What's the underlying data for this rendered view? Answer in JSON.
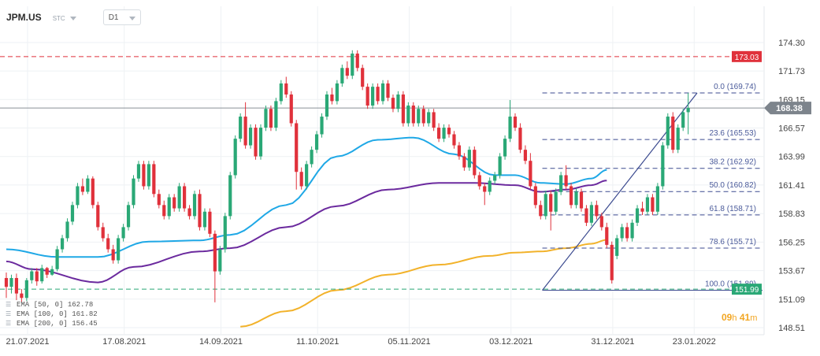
{
  "header": {
    "symbol": "JPM.US",
    "instrument_type": "STC",
    "timeframe": "D1",
    "countdown_hours": "09",
    "countdown_h_unit": "h",
    "countdown_minutes": "41",
    "countdown_m_unit": "m"
  },
  "legend": [
    {
      "label": "EMA",
      "params": "[50, 0]",
      "value": "162.78"
    },
    {
      "label": "EMA",
      "params": "[100, 0]",
      "value": "161.82"
    },
    {
      "label": "EMA",
      "params": "[200, 0]",
      "value": "156.45"
    }
  ],
  "chart_data": {
    "type": "candlestick",
    "symbol": "JPM.US",
    "timeframe": "D1",
    "ylim": [
      148.51,
      174.8
    ],
    "y_ticks": [
      174.3,
      171.73,
      169.15,
      166.57,
      163.99,
      161.41,
      158.83,
      156.25,
      153.67,
      151.09,
      148.51
    ],
    "y_tick_labels": [
      "174.30",
      "171.73",
      "169.15",
      "166.57",
      "163.99",
      "161.41",
      "158.83",
      "156.25",
      "153.67",
      "151.09",
      "148.51"
    ],
    "x_ticks": [
      "21.07.2021",
      "17.08.2021",
      "14.09.2021",
      "11.10.2021",
      "05.11.2021",
      "03.12.2021",
      "31.12.2021",
      "23.01.2022"
    ],
    "x_tick_bar_index": [
      0,
      19,
      38,
      57,
      75,
      95,
      115,
      131
    ],
    "bar_count": 135,
    "current_price": {
      "value": 168.38,
      "label": "168.38"
    },
    "levels": [
      {
        "name": "resistance",
        "value": 173.03,
        "label": "173.03",
        "color": "#e0313b"
      },
      {
        "name": "support",
        "value": 151.99,
        "label": "151.99",
        "color": "#2aa876"
      }
    ],
    "fibonacci": {
      "color": "#3b4a8f",
      "start_bar": 105,
      "end_bar": 125,
      "levels": [
        {
          "ratio": "0.0",
          "value": 169.74,
          "label": "0.0 (169.74)"
        },
        {
          "ratio": "23.6",
          "value": 165.53,
          "label": "23.6 (165.53)"
        },
        {
          "ratio": "38.2",
          "value": 162.92,
          "label": "38.2 (162.92)"
        },
        {
          "ratio": "50.0",
          "value": 160.82,
          "label": "50.0 (160.82)"
        },
        {
          "ratio": "61.8",
          "value": 158.71,
          "label": "61.8 (158.71)"
        },
        {
          "ratio": "78.6",
          "value": 155.71,
          "label": "78.6 (155.71)"
        },
        {
          "ratio": "100.0",
          "value": 151.89,
          "label": "100.0 (151.89)"
        }
      ]
    },
    "colors": {
      "up": "#2aa876",
      "down": "#e0313b",
      "ema50": "#1fa8e6",
      "ema100": "#6b2a9e",
      "ema200": "#f2b22a",
      "fib": "#3b4a8f"
    },
    "ema_series": [
      {
        "name": "EMA [50, 0]",
        "last": 162.78,
        "knots": [
          [
            0,
            155.6
          ],
          [
            10,
            154.9
          ],
          [
            18,
            154.9
          ],
          [
            28,
            156.3
          ],
          [
            38,
            156.4
          ],
          [
            44,
            156.9
          ],
          [
            55,
            159.6
          ],
          [
            65,
            164.0
          ],
          [
            73,
            165.5
          ],
          [
            80,
            165.7
          ],
          [
            88,
            164.2
          ],
          [
            96,
            162.3
          ],
          [
            100,
            162.3
          ],
          [
            105,
            161.6
          ],
          [
            110,
            161.5
          ],
          [
            115,
            162.0
          ],
          [
            118,
            162.78
          ]
        ]
      },
      {
        "name": "EMA [100, 0]",
        "last": 161.82,
        "knots": [
          [
            0,
            154.5
          ],
          [
            5,
            153.8
          ],
          [
            18,
            152.6
          ],
          [
            25,
            154.0
          ],
          [
            38,
            155.4
          ],
          [
            44,
            155.7
          ],
          [
            55,
            157.6
          ],
          [
            65,
            159.5
          ],
          [
            75,
            161.0
          ],
          [
            85,
            161.6
          ],
          [
            92,
            161.6
          ],
          [
            100,
            161.4
          ],
          [
            105,
            160.8
          ],
          [
            110,
            161.0
          ],
          [
            115,
            161.4
          ],
          [
            118,
            161.82
          ]
        ]
      },
      {
        "name": "EMA [200, 0]",
        "last": 156.45,
        "knots": [
          [
            46,
            148.6
          ],
          [
            55,
            150.0
          ],
          [
            65,
            151.9
          ],
          [
            75,
            153.3
          ],
          [
            85,
            154.2
          ],
          [
            95,
            155.0
          ],
          [
            100,
            155.3
          ],
          [
            105,
            155.4
          ],
          [
            110,
            155.7
          ],
          [
            115,
            156.1
          ],
          [
            118,
            156.45
          ]
        ]
      }
    ],
    "candles": [
      [
        153.0,
        152.2,
        153.5,
        151.2
      ],
      [
        152.2,
        153.0,
        153.3,
        151.6
      ],
      [
        153.0,
        151.6,
        153.4,
        151.0
      ],
      [
        151.6,
        151.2,
        152.0,
        150.8
      ],
      [
        151.2,
        152.8,
        153.0,
        150.9
      ],
      [
        152.8,
        153.6,
        153.9,
        152.5
      ],
      [
        153.6,
        152.7,
        153.9,
        152.3
      ],
      [
        152.7,
        153.9,
        154.2,
        152.5
      ],
      [
        153.9,
        153.3,
        154.0,
        153.0
      ],
      [
        153.3,
        153.8,
        154.1,
        153.2
      ],
      [
        153.8,
        155.6,
        155.9,
        153.6
      ],
      [
        155.6,
        156.6,
        156.9,
        155.3
      ],
      [
        156.6,
        158.1,
        158.4,
        156.3
      ],
      [
        158.1,
        159.6,
        159.9,
        157.8
      ],
      [
        159.6,
        161.3,
        161.6,
        159.3
      ],
      [
        161.3,
        160.8,
        162.0,
        160.5
      ],
      [
        160.8,
        162.0,
        162.3,
        160.6
      ],
      [
        162.0,
        159.6,
        162.2,
        159.3
      ],
      [
        159.6,
        157.6,
        159.9,
        157.3
      ],
      [
        157.6,
        156.6,
        158.0,
        156.3
      ],
      [
        156.6,
        155.6,
        157.0,
        155.3
      ],
      [
        155.6,
        154.6,
        156.0,
        154.3
      ],
      [
        154.6,
        156.6,
        156.9,
        154.3
      ],
      [
        156.6,
        157.6,
        157.9,
        156.3
      ],
      [
        157.6,
        159.6,
        159.9,
        157.3
      ],
      [
        159.6,
        162.0,
        162.3,
        159.3
      ],
      [
        162.0,
        163.3,
        163.6,
        161.7
      ],
      [
        163.3,
        161.3,
        163.6,
        161.0
      ],
      [
        161.3,
        163.3,
        163.6,
        161.0
      ],
      [
        163.3,
        160.6,
        163.6,
        160.3
      ],
      [
        160.6,
        159.6,
        161.0,
        159.3
      ],
      [
        159.6,
        158.6,
        160.0,
        158.3
      ],
      [
        158.6,
        160.3,
        160.6,
        158.3
      ],
      [
        160.3,
        159.3,
        160.6,
        159.0
      ],
      [
        159.3,
        161.3,
        161.6,
        159.0
      ],
      [
        161.3,
        159.3,
        161.6,
        159.0
      ],
      [
        159.3,
        158.6,
        159.6,
        158.3
      ],
      [
        158.6,
        160.6,
        160.9,
        158.3
      ],
      [
        160.6,
        157.6,
        161.0,
        157.3
      ],
      [
        157.6,
        159.0,
        159.3,
        157.3
      ],
      [
        159.0,
        157.0,
        159.3,
        156.7
      ],
      [
        157.0,
        153.6,
        157.3,
        150.8
      ],
      [
        153.6,
        155.6,
        155.9,
        153.3
      ],
      [
        155.6,
        158.6,
        158.9,
        155.3
      ],
      [
        158.6,
        162.3,
        162.6,
        158.3
      ],
      [
        162.3,
        165.6,
        165.9,
        162.0
      ],
      [
        165.6,
        167.6,
        167.9,
        165.3
      ],
      [
        167.6,
        165.0,
        168.9,
        164.7
      ],
      [
        165.0,
        166.6,
        166.9,
        164.7
      ],
      [
        166.6,
        164.0,
        166.9,
        163.7
      ],
      [
        164.0,
        166.6,
        166.9,
        163.7
      ],
      [
        166.6,
        168.3,
        168.6,
        166.3
      ],
      [
        168.3,
        166.6,
        168.6,
        166.3
      ],
      [
        166.6,
        169.0,
        169.3,
        166.3
      ],
      [
        169.0,
        170.6,
        170.9,
        168.7
      ],
      [
        170.6,
        169.6,
        171.2,
        169.3
      ],
      [
        169.6,
        167.0,
        169.9,
        166.7
      ],
      [
        167.0,
        162.6,
        167.3,
        161.0
      ],
      [
        162.6,
        161.3,
        163.0,
        161.0
      ],
      [
        161.3,
        163.3,
        163.6,
        161.0
      ],
      [
        163.3,
        164.6,
        164.9,
        163.0
      ],
      [
        164.6,
        166.0,
        166.3,
        164.3
      ],
      [
        166.0,
        167.6,
        167.9,
        165.7
      ],
      [
        167.6,
        169.6,
        169.9,
        167.3
      ],
      [
        169.6,
        169.0,
        170.2,
        168.7
      ],
      [
        169.0,
        170.6,
        170.9,
        168.7
      ],
      [
        170.6,
        172.0,
        172.3,
        170.3
      ],
      [
        172.0,
        171.3,
        172.6,
        171.0
      ],
      [
        171.3,
        173.3,
        173.6,
        171.0
      ],
      [
        173.3,
        172.0,
        173.6,
        171.7
      ],
      [
        172.0,
        170.3,
        172.3,
        170.0
      ],
      [
        170.3,
        168.6,
        170.6,
        168.3
      ],
      [
        168.6,
        170.3,
        170.6,
        168.3
      ],
      [
        170.3,
        169.0,
        170.6,
        168.7
      ],
      [
        169.0,
        170.6,
        170.9,
        168.7
      ],
      [
        170.6,
        169.3,
        170.9,
        169.0
      ],
      [
        169.3,
        168.3,
        169.6,
        168.0
      ],
      [
        168.3,
        169.6,
        169.9,
        168.0
      ],
      [
        169.6,
        167.0,
        169.9,
        166.7
      ],
      [
        167.0,
        168.6,
        168.9,
        166.7
      ],
      [
        168.6,
        167.0,
        168.9,
        166.7
      ],
      [
        167.0,
        168.3,
        168.6,
        166.7
      ],
      [
        168.3,
        167.0,
        168.6,
        166.7
      ],
      [
        167.0,
        168.0,
        168.3,
        166.7
      ],
      [
        168.0,
        166.6,
        168.3,
        166.3
      ],
      [
        166.6,
        165.6,
        167.0,
        165.3
      ],
      [
        165.6,
        166.6,
        166.9,
        165.3
      ],
      [
        166.6,
        166.0,
        166.9,
        165.7
      ],
      [
        166.0,
        165.0,
        166.3,
        164.7
      ],
      [
        165.0,
        164.0,
        165.3,
        163.7
      ],
      [
        164.0,
        163.0,
        164.3,
        162.7
      ],
      [
        163.0,
        164.6,
        164.9,
        162.7
      ],
      [
        164.6,
        162.3,
        164.9,
        162.0
      ],
      [
        162.3,
        161.3,
        162.6,
        161.0
      ],
      [
        161.3,
        160.8,
        161.6,
        159.6
      ],
      [
        160.8,
        161.8,
        162.1,
        160.5
      ],
      [
        161.8,
        162.3,
        162.6,
        161.5
      ],
      [
        162.3,
        164.0,
        164.3,
        162.0
      ],
      [
        164.0,
        165.6,
        165.9,
        163.7
      ],
      [
        165.6,
        167.6,
        169.1,
        165.3
      ],
      [
        167.6,
        166.6,
        167.9,
        166.3
      ],
      [
        166.6,
        164.6,
        167.0,
        164.3
      ],
      [
        164.6,
        163.6,
        165.0,
        163.3
      ],
      [
        163.6,
        161.3,
        164.3,
        161.0
      ],
      [
        161.3,
        159.6,
        161.6,
        159.3
      ],
      [
        159.6,
        158.6,
        160.0,
        158.3
      ],
      [
        158.6,
        160.6,
        160.9,
        158.3
      ],
      [
        160.6,
        159.0,
        160.9,
        157.3
      ],
      [
        159.0,
        160.8,
        161.1,
        158.7
      ],
      [
        160.8,
        162.3,
        162.6,
        160.5
      ],
      [
        162.3,
        161.3,
        163.2,
        161.0
      ],
      [
        161.3,
        159.6,
        161.6,
        159.3
      ],
      [
        159.6,
        160.8,
        161.1,
        159.3
      ],
      [
        160.8,
        159.3,
        161.1,
        159.0
      ],
      [
        159.3,
        158.0,
        159.6,
        157.7
      ],
      [
        158.0,
        159.6,
        159.9,
        157.7
      ],
      [
        159.6,
        158.6,
        160.0,
        158.3
      ],
      [
        158.6,
        157.6,
        158.9,
        157.3
      ],
      [
        157.6,
        156.0,
        158.0,
        155.7
      ],
      [
        156.0,
        152.8,
        156.3,
        152.5
      ],
      [
        155.0,
        156.6,
        156.9,
        154.7
      ],
      [
        156.6,
        157.6,
        157.9,
        156.3
      ],
      [
        157.6,
        156.6,
        158.0,
        156.3
      ],
      [
        156.6,
        158.0,
        158.3,
        156.3
      ],
      [
        158.0,
        159.3,
        159.6,
        157.7
      ],
      [
        159.3,
        159.0,
        159.9,
        158.7
      ],
      [
        159.0,
        160.3,
        160.6,
        158.7
      ],
      [
        160.3,
        159.0,
        160.6,
        158.7
      ],
      [
        159.0,
        161.3,
        161.6,
        158.7
      ],
      [
        161.3,
        165.0,
        165.3,
        161.0
      ],
      [
        165.0,
        167.6,
        167.9,
        164.7
      ],
      [
        167.6,
        164.6,
        168.0,
        164.3
      ],
      [
        164.6,
        166.6,
        166.9,
        164.3
      ],
      [
        166.6,
        168.0,
        168.3,
        166.3
      ],
      [
        168.0,
        168.38,
        169.74,
        166.0
      ]
    ]
  }
}
